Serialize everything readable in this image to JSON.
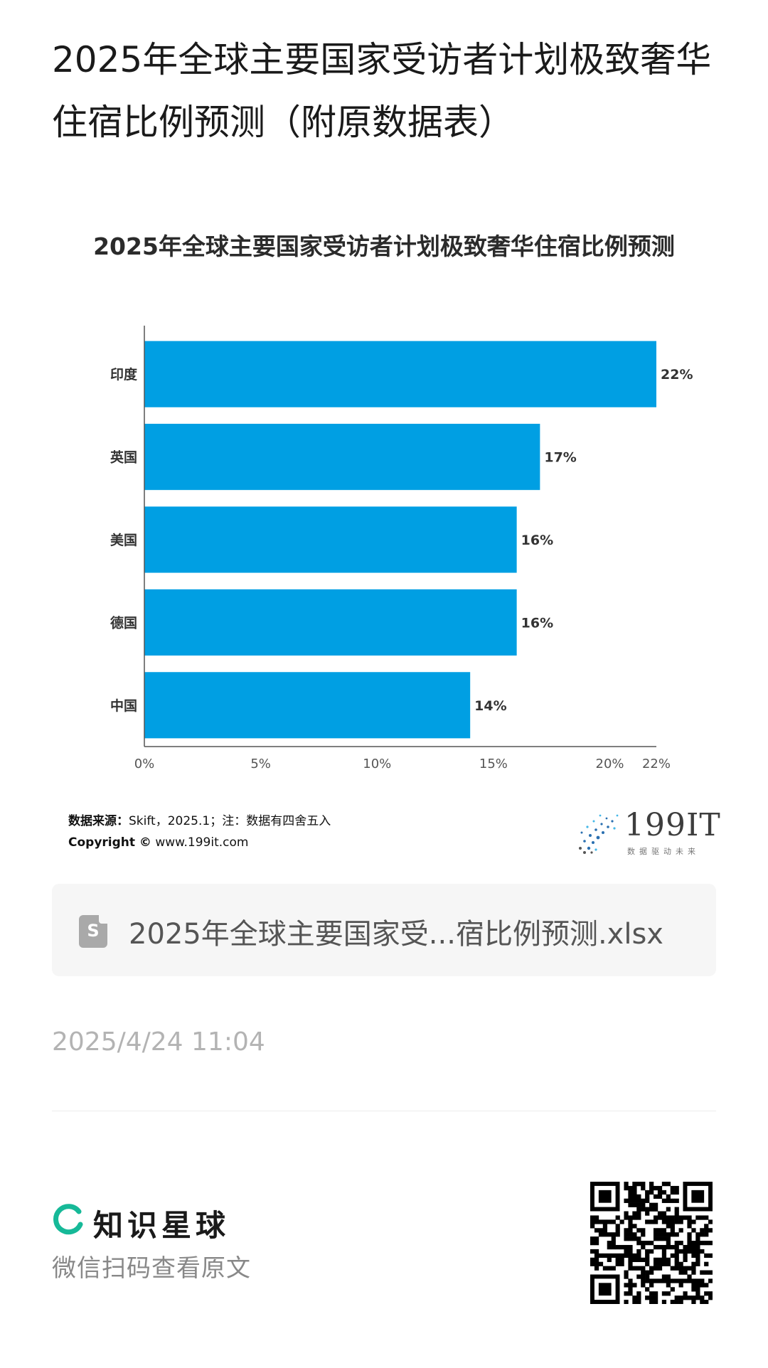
{
  "post": {
    "title": "2025年全球主要国家受访者计划极致奢华住宿比例预测（附原数据表）"
  },
  "chart_data": {
    "type": "bar",
    "orientation": "horizontal",
    "title": "2025年全球主要国家受访者计划极致奢华住宿比例预测",
    "categories": [
      "印度",
      "英国",
      "美国",
      "德国",
      "中国"
    ],
    "values": [
      22,
      17,
      16,
      16,
      14
    ],
    "value_labels": [
      "22%",
      "17%",
      "16%",
      "16%",
      "14%"
    ],
    "xlim": [
      0,
      22
    ],
    "x_ticks": [
      0,
      5,
      10,
      15,
      20,
      22
    ],
    "x_tick_labels": [
      "0%",
      "5%",
      "10%",
      "15%",
      "20%",
      "22%"
    ],
    "bar_color": "#009fe3",
    "grid": false,
    "legend": "none"
  },
  "source": {
    "label": "数据来源：",
    "text": "Skift，2025.1；注：数据有四舍五入",
    "copyright_label": "Copyright ©",
    "copyright_site": " www.199it.com"
  },
  "logo": {
    "text": "199IT",
    "subtitle": "数据驱动未来"
  },
  "attachment": {
    "icon_letter": "S",
    "icon": "spreadsheet-file-icon",
    "name": "2025年全球主要国家受...宿比例预测.xlsx"
  },
  "timestamp": "2025/4/24 11:04",
  "footer": {
    "brand": "知识星球",
    "brand_color": "#16b998",
    "scan_hint": "微信扫码查看原文"
  }
}
